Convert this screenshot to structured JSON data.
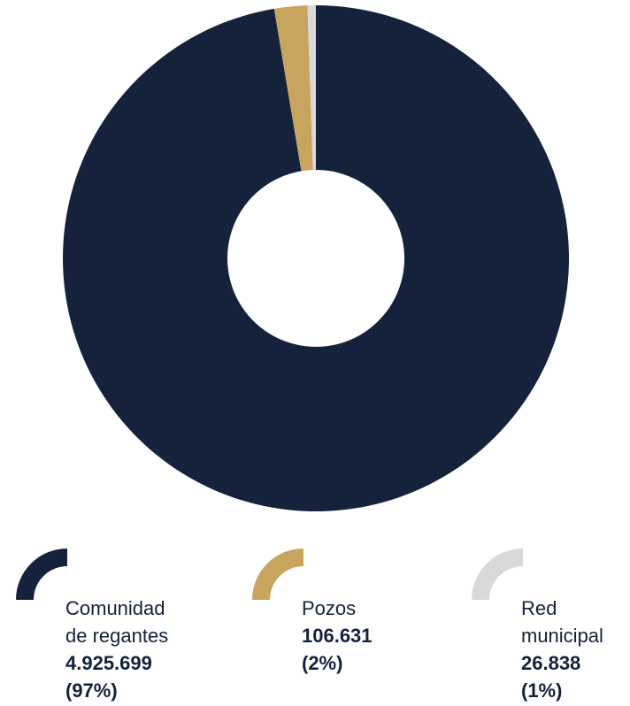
{
  "chart_data": {
    "type": "pie",
    "series": [
      {
        "name": "Comunidad de regantes",
        "value": 4925699,
        "value_label": "4.925.699",
        "percent_label": "(97%)",
        "color": "#14233b",
        "label_lines": [
          "Comunidad",
          "de regantes"
        ]
      },
      {
        "name": "Pozos",
        "value": 106631,
        "value_label": "106.631",
        "percent_label": "(2%)",
        "color": "#c9a45f",
        "label_lines": [
          "Pozos"
        ]
      },
      {
        "name": "Red municipal",
        "value": 26838,
        "value_label": "26.838",
        "percent_label": "(1%)",
        "color": "#d9d9d9",
        "label_lines": [
          "Red",
          "municipal"
        ]
      }
    ],
    "legend_placement": "bottom",
    "donut": true
  }
}
